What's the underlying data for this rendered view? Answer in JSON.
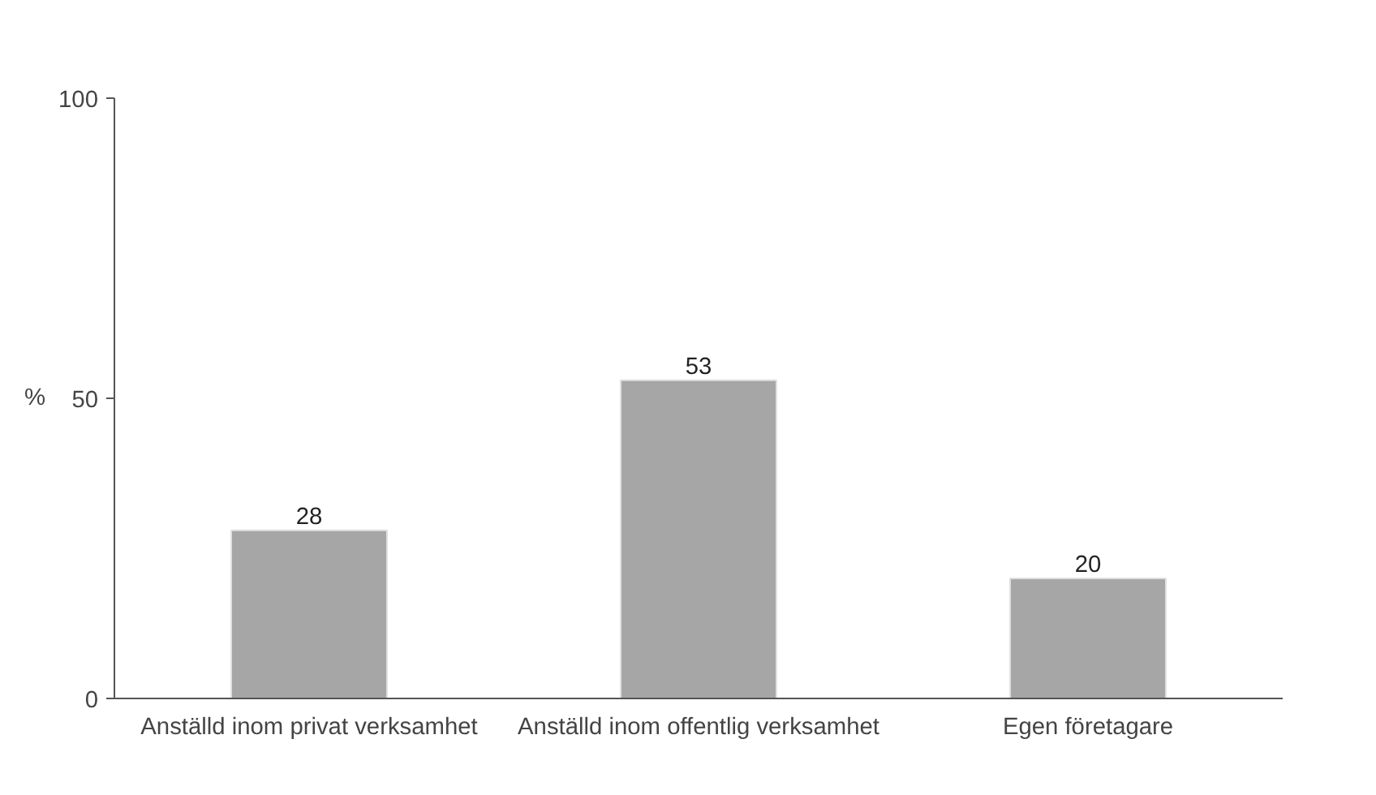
{
  "chart_data": {
    "type": "bar",
    "categories": [
      "Anställd inom privat verksamhet",
      "Anställd inom offentlig verksamhet",
      "Egen företagare"
    ],
    "values": [
      28,
      53,
      20
    ],
    "color": "#a6a6a6",
    "ylabel": "%",
    "ylim": [
      0,
      100
    ],
    "yticks": [
      0,
      50,
      100
    ],
    "data_labels": true,
    "grid": false
  }
}
